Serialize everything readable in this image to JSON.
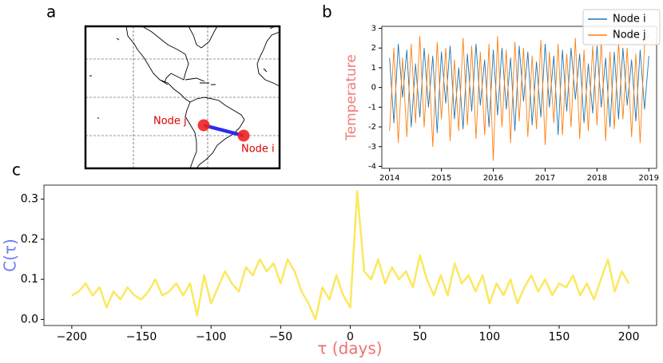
{
  "map": {
    "panel": "a",
    "nodes": [
      {
        "label": "Node j"
      },
      {
        "label": "Node i"
      }
    ]
  },
  "chart_data": [
    {
      "panel": "b",
      "type": "line",
      "ylabel": "Temperature",
      "legend": "upper right",
      "x": [
        2014,
        2014.083,
        2014.167,
        2014.25,
        2014.333,
        2014.417,
        2014.5,
        2014.583,
        2014.667,
        2014.75,
        2014.833,
        2014.917,
        2015,
        2015.083,
        2015.167,
        2015.25,
        2015.333,
        2015.417,
        2015.5,
        2015.583,
        2015.667,
        2015.75,
        2015.833,
        2015.917,
        2016,
        2016.083,
        2016.167,
        2016.25,
        2016.333,
        2016.417,
        2016.5,
        2016.583,
        2016.667,
        2016.75,
        2016.833,
        2016.917,
        2017,
        2017.083,
        2017.167,
        2017.25,
        2017.333,
        2017.417,
        2017.5,
        2017.583,
        2017.667,
        2017.75,
        2017.833,
        2017.917,
        2018,
        2018.083,
        2018.167,
        2018.25,
        2018.333,
        2018.417,
        2018.5,
        2018.583,
        2018.667,
        2018.75,
        2018.833,
        2018.917,
        2019
      ],
      "series": [
        {
          "name": "Node i",
          "color": "#1f77b4",
          "values": [
            1.5,
            -1.8,
            2.2,
            -0.5,
            1.9,
            -2.0,
            1.2,
            -1.5,
            2.0,
            -1.0,
            1.6,
            -2.3,
            1.8,
            -0.8,
            2.1,
            -1.6,
            1.0,
            -2.1,
            1.7,
            -1.2,
            2.2,
            -0.9,
            1.4,
            -2.0,
            1.9,
            -1.4,
            2.0,
            -1.1,
            1.5,
            -2.2,
            2.1,
            -0.7,
            1.8,
            -1.9,
            1.3,
            -1.5,
            2.2,
            -1.0,
            1.6,
            -2.4,
            1.9,
            -1.2,
            2.0,
            -0.6,
            1.7,
            -1.8,
            1.2,
            -1.3,
            2.1,
            -1.0,
            1.5,
            -2.0,
            1.8,
            -1.6,
            2.0,
            -0.9,
            1.4,
            -1.7,
            1.9,
            -1.1,
            1.6
          ]
        },
        {
          "name": "Node j",
          "color": "#ff7f0e",
          "values": [
            -2.2,
            2.0,
            -2.8,
            1.5,
            -2.5,
            2.2,
            -1.8,
            2.6,
            -2.0,
            1.7,
            -3.0,
            2.3,
            -1.6,
            2.0,
            -2.7,
            1.4,
            -2.2,
            2.5,
            -1.9,
            2.1,
            -2.6,
            1.8,
            -2.4,
            2.2,
            -3.7,
            2.6,
            -2.0,
            1.9,
            -2.8,
            2.3,
            -1.7,
            2.0,
            -2.5,
            1.6,
            -2.1,
            2.4,
            -2.9,
            1.8,
            -1.8,
            2.2,
            -2.4,
            1.7,
            -2.0,
            2.5,
            -2.6,
            1.9,
            -2.2,
            2.1,
            -1.9,
            2.4,
            -2.7,
            1.8,
            -2.1,
            2.3,
            -1.6,
            2.0,
            -2.5,
            1.7,
            -2.8,
            2.2,
            2.7
          ]
        }
      ],
      "xlim": [
        2013.85,
        2019.15
      ],
      "xticks": [
        2014,
        2015,
        2016,
        2017,
        2018,
        2019
      ],
      "ylim": [
        -4.1,
        3.1
      ],
      "yticks": [
        -4,
        -3,
        -2,
        -1,
        0,
        1,
        2,
        3
      ]
    },
    {
      "panel": "c",
      "type": "line",
      "ylabel": "C(τ)",
      "xlabel": "τ (days)",
      "x": [
        -200,
        -195,
        -190,
        -185,
        -180,
        -175,
        -170,
        -165,
        -160,
        -155,
        -150,
        -145,
        -140,
        -135,
        -130,
        -125,
        -120,
        -115,
        -110,
        -105,
        -100,
        -95,
        -90,
        -85,
        -80,
        -75,
        -70,
        -65,
        -60,
        -55,
        -50,
        -45,
        -40,
        -35,
        -30,
        -25,
        -20,
        -15,
        -10,
        -5,
        0,
        5,
        10,
        15,
        20,
        25,
        30,
        35,
        40,
        45,
        50,
        55,
        60,
        65,
        70,
        75,
        80,
        85,
        90,
        95,
        100,
        105,
        110,
        115,
        120,
        125,
        130,
        135,
        140,
        145,
        150,
        155,
        160,
        165,
        170,
        175,
        180,
        185,
        190,
        195,
        200
      ],
      "series": [
        {
          "name": "C(τ)",
          "color": "#fbe85f",
          "values": [
            0.06,
            0.07,
            0.09,
            0.06,
            0.08,
            0.03,
            0.07,
            0.05,
            0.08,
            0.06,
            0.05,
            0.07,
            0.1,
            0.06,
            0.07,
            0.09,
            0.06,
            0.09,
            0.01,
            0.11,
            0.04,
            0.08,
            0.12,
            0.09,
            0.07,
            0.13,
            0.11,
            0.15,
            0.12,
            0.14,
            0.09,
            0.15,
            0.12,
            0.07,
            0.04,
            0.0,
            0.08,
            0.05,
            0.11,
            0.06,
            0.03,
            0.32,
            0.12,
            0.1,
            0.15,
            0.09,
            0.13,
            0.1,
            0.12,
            0.08,
            0.16,
            0.1,
            0.06,
            0.11,
            0.06,
            0.14,
            0.09,
            0.11,
            0.07,
            0.11,
            0.04,
            0.09,
            0.06,
            0.1,
            0.04,
            0.08,
            0.11,
            0.07,
            0.1,
            0.06,
            0.09,
            0.08,
            0.11,
            0.06,
            0.09,
            0.05,
            0.1,
            0.15,
            0.07,
            0.12,
            0.09
          ]
        }
      ],
      "xlim": [
        -220,
        220
      ],
      "xticks": [
        {
          "value": -200,
          "label": "−200"
        },
        {
          "value": -150,
          "label": "−150"
        },
        {
          "value": -100,
          "label": "−100"
        },
        {
          "value": -50,
          "label": "−50"
        },
        0,
        50,
        100,
        150,
        200
      ],
      "ylim": [
        -0.015,
        0.335
      ],
      "yticks": [
        {
          "value": 0,
          "label": "0.0"
        },
        0.1,
        0.2,
        0.3
      ]
    }
  ]
}
